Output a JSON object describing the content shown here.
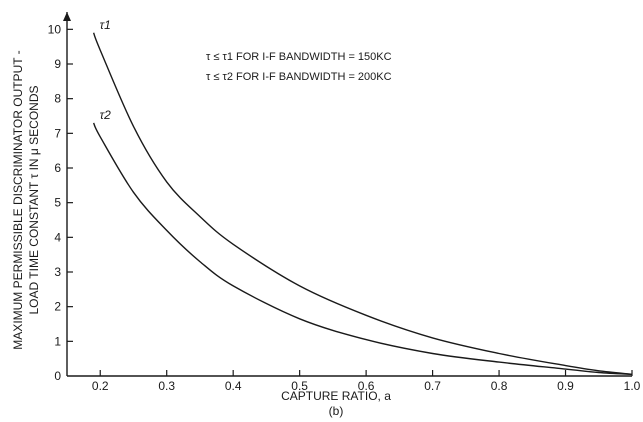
{
  "chart_data": {
    "type": "line",
    "xlabel": "CAPTURE RATIO, a",
    "sublabel": "(b)",
    "ylabel_line1": "MAXIMUM PERMISSIBLE DISCRIMINATOR OUTPUT -",
    "ylabel_line2": "LOAD TIME CONSTANT τ IN μ SECONDS",
    "xlim": [
      0.15,
      1.0
    ],
    "ylim": [
      0,
      10.5
    ],
    "x_ticks": [
      "0.2",
      "0.3",
      "0.4",
      "0.5",
      "0.6",
      "0.7",
      "0.8",
      "0.9",
      "1.0"
    ],
    "y_ticks": [
      "0",
      "1",
      "2",
      "3",
      "4",
      "5",
      "6",
      "7",
      "8",
      "9",
      "10"
    ],
    "annotations": [
      "τ ≤ τ1 FOR I-F BANDWIDTH = 150KC",
      "τ ≤ τ2 FOR I-F BANDWIDTH = 200KC"
    ],
    "series": [
      {
        "name": "τ1",
        "x": [
          0.19,
          0.2,
          0.25,
          0.3,
          0.35,
          0.4,
          0.5,
          0.6,
          0.7,
          0.8,
          0.9,
          0.95,
          1.0
        ],
        "y": [
          9.9,
          9.4,
          7.2,
          5.6,
          4.6,
          3.8,
          2.6,
          1.75,
          1.1,
          0.65,
          0.3,
          0.15,
          0.05
        ]
      },
      {
        "name": "τ2",
        "x": [
          0.19,
          0.2,
          0.25,
          0.3,
          0.35,
          0.4,
          0.5,
          0.6,
          0.7,
          0.8,
          0.9,
          0.95,
          1.0
        ],
        "y": [
          7.3,
          6.9,
          5.3,
          4.2,
          3.3,
          2.6,
          1.65,
          1.05,
          0.65,
          0.4,
          0.2,
          0.1,
          0.05
        ]
      }
    ],
    "grid": false,
    "ink_color": "#1a1a1a"
  }
}
